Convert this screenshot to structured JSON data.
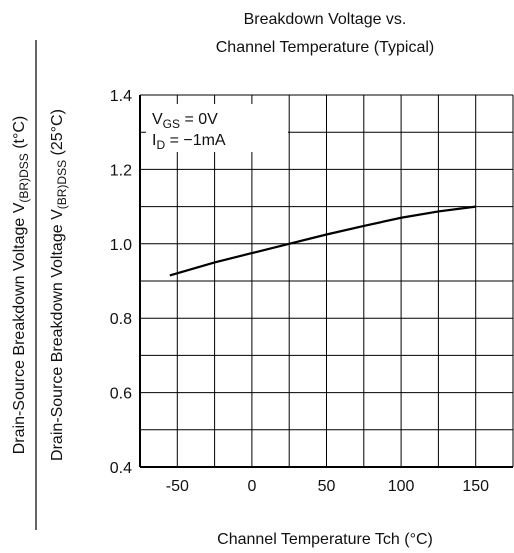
{
  "chart_data": {
    "type": "line",
    "title": [
      "Breakdown Voltage vs.",
      "Channel Temperature (Typical)"
    ],
    "xlabel": "Channel Temperature  Tch  (°C)",
    "ylabel": {
      "numerator": {
        "text": "Drain-Source Breakdown Voltage  V",
        "sub": "(BR)DSS",
        "rest": " (t°C)"
      },
      "denominator": {
        "text": "Drain-Source Breakdown Voltage  V",
        "sub": "(BR)DSS",
        "rest": " (25°C)"
      }
    },
    "annotations": [
      {
        "text": "V",
        "sub": "GS",
        "rest": " = 0V"
      },
      {
        "text": "I",
        "sub": "D",
        "rest": " = −1mA"
      }
    ],
    "x": [
      -55,
      -25,
      0,
      25,
      50,
      75,
      100,
      125,
      150
    ],
    "series": [
      {
        "name": null,
        "color": "#000000",
        "values": [
          0.915,
          0.95,
          0.975,
          1.0,
          1.025,
          1.048,
          1.07,
          1.087,
          1.1
        ]
      }
    ],
    "xlim": [
      -75,
      175
    ],
    "xticks": [
      -50,
      0,
      50,
      100,
      150
    ],
    "ylim": [
      0.4,
      1.4
    ],
    "yticks": [
      {
        "value": 0.4,
        "label": "0.4"
      },
      {
        "value": 0.6,
        "label": "0.6"
      },
      {
        "value": 0.8,
        "label": "0.8"
      },
      {
        "value": 1.0,
        "label": "1.0"
      },
      {
        "value": 1.2,
        "label": "1.2"
      },
      {
        "value": 1.4,
        "label": "1.4"
      }
    ],
    "grid": true
  }
}
